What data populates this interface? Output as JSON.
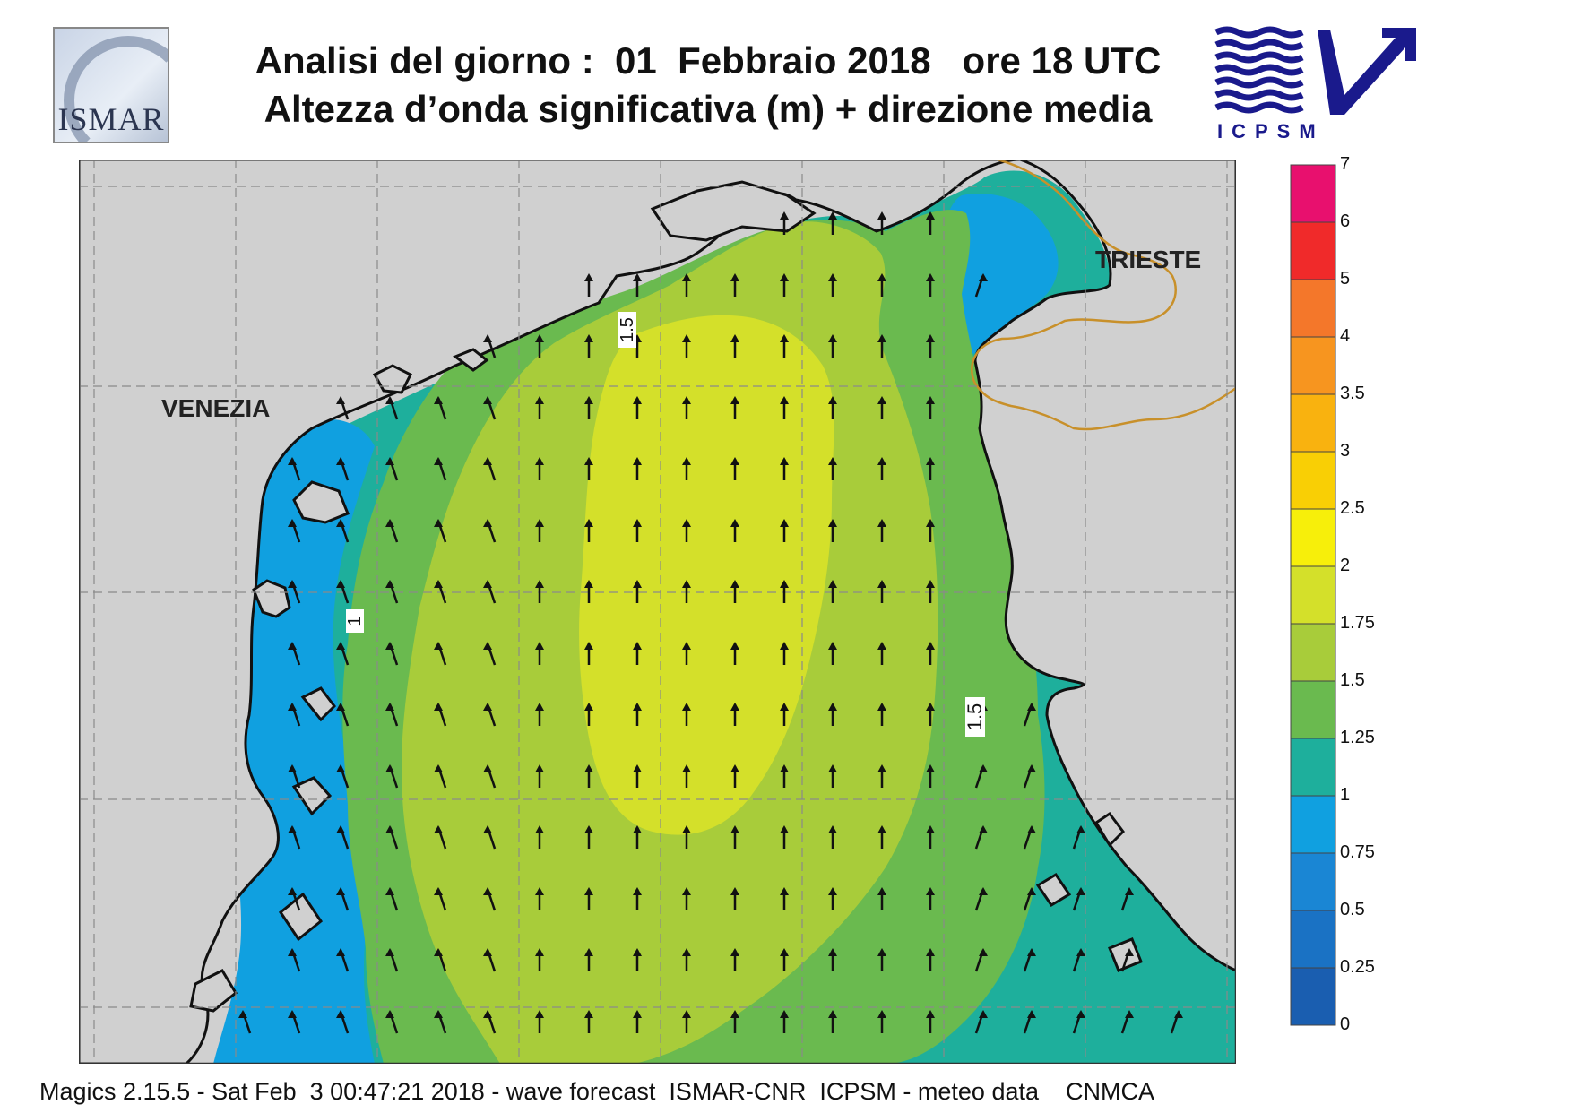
{
  "title": {
    "line1": "Analisi del giorno :  01  Febbraio 2018   ore 18 UTC",
    "line2": "Altezza d’onda significativa (m) + direzione media"
  },
  "logos": {
    "left": "ISMAR",
    "right": "ICPSM"
  },
  "places": {
    "venezia": "VENEZIA",
    "trieste": "TRIESTE"
  },
  "contour_labels": [
    "1.5",
    "1",
    "1.5"
  ],
  "colorbar": {
    "levels": [
      "7",
      "6",
      "5",
      "4",
      "3.5",
      "3",
      "2.5",
      "2",
      "1.75",
      "1.5",
      "1.25",
      "1",
      "0.75",
      "0.5",
      "0.25",
      "0"
    ],
    "colors": [
      "#e8106e",
      "#f02a2a",
      "#f4772a",
      "#f7951f",
      "#f9b20f",
      "#f9cf05",
      "#f7ef0a",
      "#d4e02a",
      "#a8cc3a",
      "#6aba4f",
      "#1eaf9c",
      "#10a0e0",
      "#1a86d4",
      "#1a72c4",
      "#1a5eb0"
    ]
  },
  "footer": "Magics 2.15.5 - Sat Feb  3 00:47:21 2018 - wave forecast  ISMAR-CNR  ICPSM - meteo data    CNMCA",
  "colors": {
    "land": "#d0d0d0",
    "coast": "#111111",
    "border": "#c8902a",
    "grid": "#8a8a8a"
  },
  "arrow_direction": "north"
}
